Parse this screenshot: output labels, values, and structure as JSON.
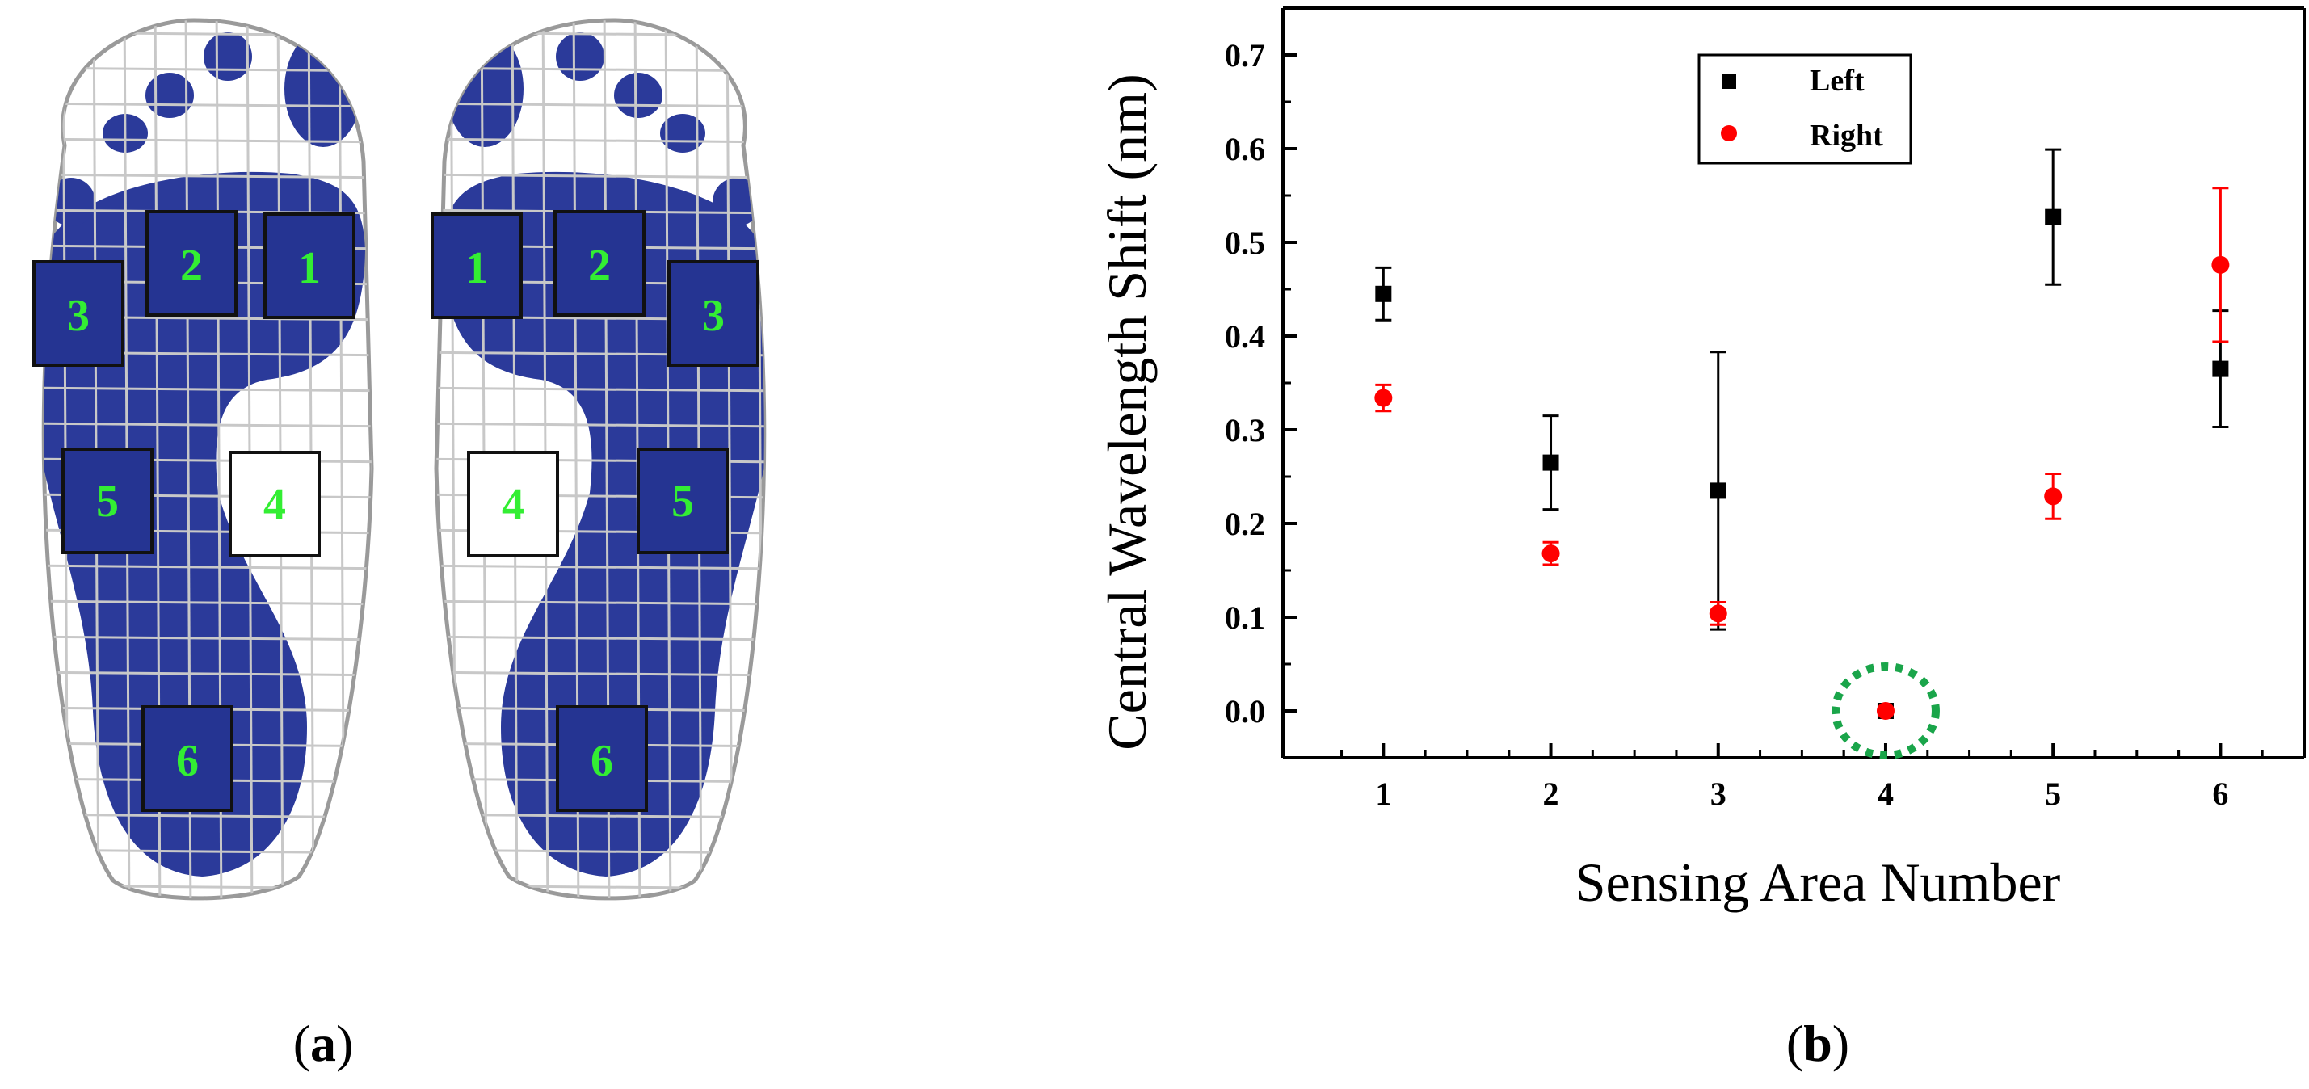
{
  "panels": {
    "a_label_open": "(",
    "a_letter": "a",
    "a_label_close": ")",
    "b_label_open": "(",
    "b_letter": "b",
    "b_label_close": ")"
  },
  "feet": {
    "sensor_numbers": [
      "1",
      "2",
      "3",
      "4",
      "5",
      "6"
    ],
    "colors": {
      "foot": "#2b3a9a",
      "sensor_text": "#33ee33",
      "grid": "#b8b8b8"
    }
  },
  "chart_data": {
    "type": "scatter",
    "xlabel": "Sensing Area Number",
    "ylabel": "Central Wavelength Shift (nm)",
    "xlim": [
      0.4,
      6.5
    ],
    "ylim": [
      -0.05,
      0.75
    ],
    "xticks": [
      "1",
      "2",
      "3",
      "4",
      "5",
      "6"
    ],
    "yticks": [
      "0.0",
      "0.1",
      "0.2",
      "0.3",
      "0.4",
      "0.5",
      "0.6",
      "0.7"
    ],
    "legend_position": "top-center",
    "series": [
      {
        "name": "Left",
        "marker": "square",
        "color": "#000000",
        "x": [
          1,
          2,
          3,
          4,
          5,
          6
        ],
        "y": [
          0.445,
          0.265,
          0.235,
          0.0,
          0.527,
          0.365
        ],
        "err": [
          0.028,
          0.05,
          0.148,
          0.0,
          0.072,
          0.062
        ]
      },
      {
        "name": "Right",
        "marker": "circle",
        "color": "#ff0000",
        "x": [
          1,
          2,
          3,
          4,
          5,
          6
        ],
        "y": [
          0.334,
          0.168,
          0.104,
          0.0,
          0.229,
          0.476
        ],
        "err": [
          0.014,
          0.012,
          0.012,
          0.0,
          0.024,
          0.082
        ]
      }
    ],
    "highlight": {
      "x": 4,
      "y": 0.0,
      "color": "#1aa54a"
    }
  }
}
